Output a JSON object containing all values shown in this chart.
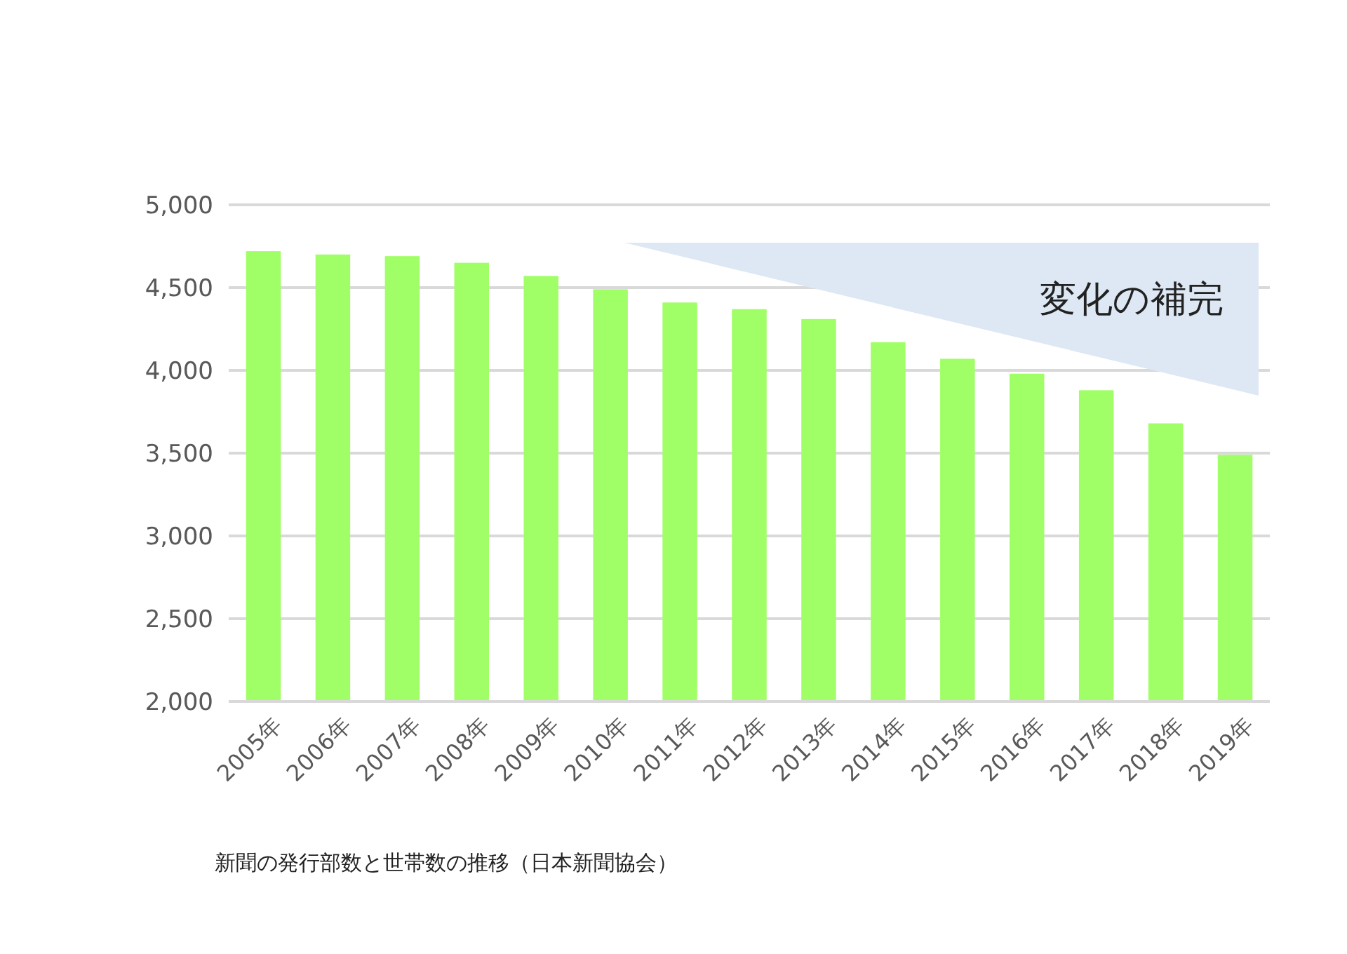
{
  "chart_data": {
    "type": "bar",
    "categories": [
      "2005年",
      "2006年",
      "2007年",
      "2008年",
      "2009年",
      "2010年",
      "2011年",
      "2012年",
      "2013年",
      "2014年",
      "2015年",
      "2016年",
      "2017年",
      "2018年",
      "2019年"
    ],
    "values": [
      4720,
      4700,
      4690,
      4650,
      4570,
      4490,
      4410,
      4370,
      4310,
      4170,
      4070,
      3980,
      3880,
      3680,
      3490
    ],
    "color": "#a0ff66",
    "ylim": [
      2000,
      5000
    ],
    "yticks": [
      {
        "value": 2000,
        "label": "2,000"
      },
      {
        "value": 2500,
        "label": "2,500"
      },
      {
        "value": 3000,
        "label": "3,000"
      },
      {
        "value": 3500,
        "label": "3,500"
      },
      {
        "value": 4000,
        "label": "4,000"
      },
      {
        "value": 4500,
        "label": "4,500"
      },
      {
        "value": 5000,
        "label": "5,000"
      }
    ],
    "grid": "y",
    "annotations": [
      "変化の補完",
      "新聞の発行部数と世帯数の推移（日本新聞協会）"
    ]
  }
}
